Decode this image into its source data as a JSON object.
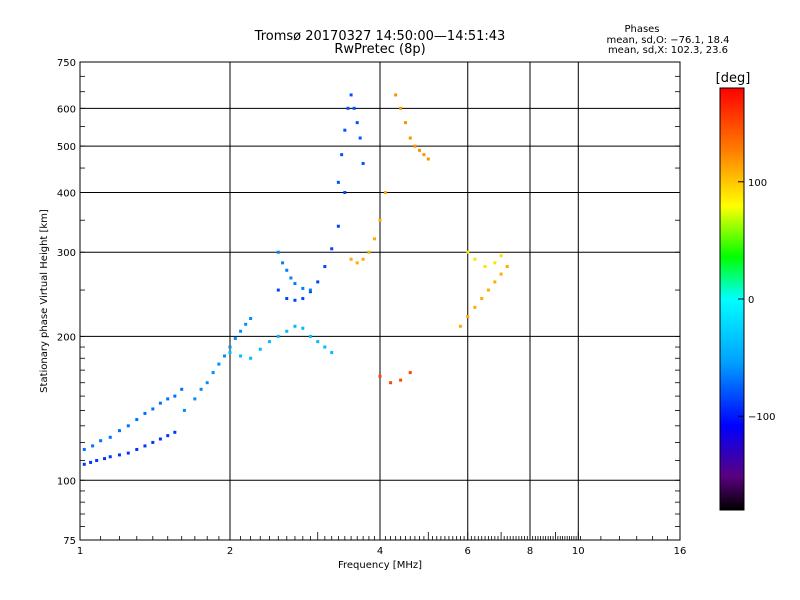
{
  "chart_data": {
    "type": "scatter",
    "title": "Tromsø 20170327 14:50:00—14:51:43",
    "subtitle": "RwPretec (8p)",
    "xlabel": "Frequency [MHz]",
    "ylabel": "Stationary phase Virtual Height [km]",
    "x_scale": "log",
    "y_scale": "log",
    "xlim": [
      1,
      16
    ],
    "ylim": [
      75,
      750
    ],
    "x_ticks": [
      1,
      2,
      4,
      6,
      8,
      10,
      16
    ],
    "x_tick_labels": [
      "1",
      "2",
      "4",
      "6",
      "8",
      "10",
      "16"
    ],
    "y_ticks": [
      75,
      100,
      200,
      300,
      400,
      500,
      600,
      750
    ],
    "y_tick_labels": [
      "75",
      "100",
      "200",
      "300",
      "400",
      "500",
      "600",
      "750"
    ],
    "grid": true,
    "stats": {
      "heading": "Phases",
      "line_o": "mean, sd,O: −76.1, 18.4",
      "line_x": "mean, sd,X: 102.3, 23.6"
    },
    "colorbar": {
      "label": "[deg]",
      "range": [
        -180,
        180
      ],
      "ticks": [
        100,
        0,
        -100
      ],
      "tick_labels": [
        "100",
        "0",
        "−100"
      ]
    },
    "series": [
      {
        "x": [
          1.02,
          1.05,
          1.08,
          1.12,
          1.15,
          1.2,
          1.25,
          1.3,
          1.35,
          1.4,
          1.45,
          1.5,
          1.55
        ],
        "y": [
          108,
          109,
          110,
          111,
          112,
          113,
          114,
          116,
          118,
          120,
          122,
          124,
          126
        ],
        "phase": -90
      },
      {
        "x": [
          1.02,
          1.06,
          1.1,
          1.15,
          1.2,
          1.25,
          1.3,
          1.35,
          1.4,
          1.45,
          1.5,
          1.55,
          1.6
        ],
        "y": [
          116,
          118,
          121,
          123,
          127,
          130,
          134,
          138,
          141,
          145,
          148,
          150,
          155
        ],
        "phase": -70
      },
      {
        "x": [
          1.62,
          1.7,
          1.75,
          1.8,
          1.85,
          1.9,
          1.95,
          2.0,
          2.05,
          2.1,
          2.15,
          2.2
        ],
        "y": [
          140,
          148,
          155,
          160,
          168,
          175,
          182,
          190,
          198,
          205,
          212,
          218
        ],
        "phase": -60
      },
      {
        "x": [
          2.0,
          2.1,
          2.2,
          2.3,
          2.4,
          2.5,
          2.6,
          2.7,
          2.8,
          2.9,
          3.0,
          3.1,
          3.2
        ],
        "y": [
          185,
          182,
          180,
          188,
          195,
          200,
          205,
          210,
          208,
          200,
          195,
          190,
          185
        ],
        "phase": -40
      },
      {
        "x": [
          2.5,
          2.6,
          2.7,
          2.8,
          2.9,
          3.0,
          3.1,
          3.2,
          3.3,
          3.4
        ],
        "y": [
          250,
          240,
          238,
          240,
          248,
          260,
          280,
          305,
          340,
          400
        ],
        "phase": -85
      },
      {
        "x": [
          2.5,
          2.55,
          2.6,
          2.65,
          2.7,
          2.8,
          2.9
        ],
        "y": [
          300,
          285,
          275,
          265,
          258,
          252,
          250
        ],
        "phase": -65
      },
      {
        "x": [
          3.3,
          3.35,
          3.4,
          3.45,
          3.5,
          3.55,
          3.6,
          3.65,
          3.7
        ],
        "y": [
          420,
          480,
          540,
          600,
          640,
          600,
          560,
          520,
          460
        ],
        "phase": -80
      },
      {
        "x": [
          3.5,
          3.6,
          3.7,
          3.8,
          3.9,
          4.0,
          4.1
        ],
        "y": [
          290,
          285,
          290,
          300,
          320,
          350,
          400
        ],
        "phase": 110
      },
      {
        "x": [
          4.3,
          4.4,
          4.5,
          4.6,
          4.7,
          4.8,
          4.9,
          5.0
        ],
        "y": [
          640,
          600,
          560,
          520,
          500,
          490,
          480,
          470
        ],
        "phase": 120
      },
      {
        "x": [
          4.0,
          4.2,
          4.4,
          4.6
        ],
        "y": [
          165,
          160,
          162,
          168
        ],
        "phase": 150
      },
      {
        "x": [
          5.8,
          6.0,
          6.2,
          6.4,
          6.6,
          6.8,
          7.0,
          7.2
        ],
        "y": [
          210,
          220,
          230,
          240,
          250,
          260,
          270,
          280
        ],
        "phase": 110
      },
      {
        "x": [
          6.0,
          6.2,
          6.5,
          6.8,
          7.0
        ],
        "y": [
          300,
          290,
          280,
          285,
          295
        ],
        "phase": 90
      }
    ]
  }
}
